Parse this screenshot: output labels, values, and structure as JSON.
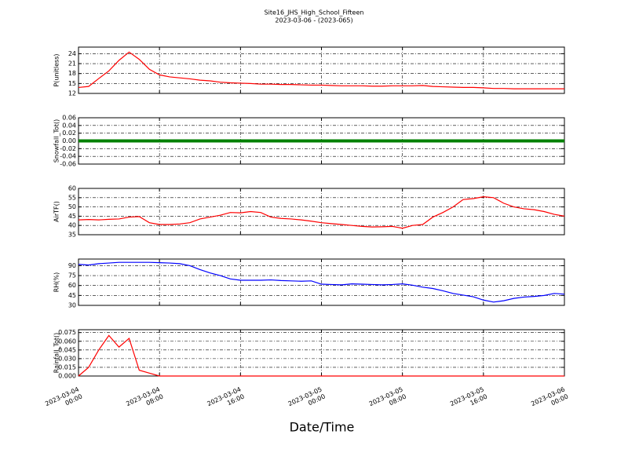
{
  "chart_data": [
    {
      "type": "line",
      "title": "Site16_JHS_High_School_Fifteen",
      "subtitle": "2023-03-06 - (2023-065)",
      "ylabel": "P(unitless)",
      "x": [
        "2023-03-04 00:00",
        "2023-03-04 01:00",
        "2023-03-04 02:00",
        "2023-03-04 03:00",
        "2023-03-04 04:00",
        "2023-03-04 05:00",
        "2023-03-04 06:00",
        "2023-03-04 07:00",
        "2023-03-04 08:00",
        "2023-03-04 09:00",
        "2023-03-04 10:00",
        "2023-03-04 11:00",
        "2023-03-04 12:00",
        "2023-03-04 13:00",
        "2023-03-04 14:00",
        "2023-03-04 15:00",
        "2023-03-04 16:00",
        "2023-03-04 17:00",
        "2023-03-04 18:00",
        "2023-03-04 19:00",
        "2023-03-04 20:00",
        "2023-03-04 21:00",
        "2023-03-04 22:00",
        "2023-03-04 23:00",
        "2023-03-05 00:00",
        "2023-03-05 01:00",
        "2023-03-05 02:00",
        "2023-03-05 03:00",
        "2023-03-05 04:00",
        "2023-03-05 05:00",
        "2023-03-05 06:00",
        "2023-03-05 07:00",
        "2023-03-05 08:00",
        "2023-03-05 09:00",
        "2023-03-05 10:00",
        "2023-03-05 11:00",
        "2023-03-05 12:00",
        "2023-03-05 13:00",
        "2023-03-05 14:00",
        "2023-03-05 15:00",
        "2023-03-05 16:00",
        "2023-03-05 17:00",
        "2023-03-05 18:00",
        "2023-03-05 19:00",
        "2023-03-05 20:00",
        "2023-03-05 21:00",
        "2023-03-05 22:00",
        "2023-03-05 23:00",
        "2023-03-06 00:00"
      ],
      "values": [
        13.8,
        14.1,
        16.5,
        18.8,
        22.0,
        24.5,
        22.3,
        19.3,
        17.6,
        17.0,
        16.7,
        16.4,
        16.0,
        15.8,
        15.4,
        15.2,
        15.1,
        15.0,
        14.8,
        14.8,
        14.7,
        14.7,
        14.6,
        14.5,
        14.5,
        14.4,
        14.3,
        14.3,
        14.3,
        14.2,
        14.2,
        14.3,
        14.3,
        14.3,
        14.4,
        14.1,
        14.0,
        13.9,
        13.8,
        13.8,
        13.7,
        13.5,
        13.5,
        13.4,
        13.4,
        13.4,
        13.4,
        13.4,
        13.4
      ],
      "color": "#ff0000",
      "xlim": [
        "2023-03-04 00:00",
        "2023-03-06 00:00"
      ],
      "xticks": [
        "2023-03-04 00:00",
        "2023-03-04 08:00",
        "2023-03-04 16:00",
        "2023-03-05 00:00",
        "2023-03-05 08:00",
        "2023-03-05 16:00",
        "2023-03-06 00:00"
      ],
      "ylim": [
        12,
        26
      ],
      "yticks": [
        12,
        15,
        18,
        21,
        24
      ],
      "grid": true
    },
    {
      "type": "line",
      "ylabel": "Snowfall_Tot()",
      "x": [
        "2023-03-04 00:00",
        "2023-03-04 01:00",
        "2023-03-04 02:00",
        "2023-03-04 03:00",
        "2023-03-04 04:00",
        "2023-03-04 05:00",
        "2023-03-04 06:00",
        "2023-03-04 07:00",
        "2023-03-04 08:00",
        "2023-03-04 09:00",
        "2023-03-04 10:00",
        "2023-03-04 11:00",
        "2023-03-04 12:00",
        "2023-03-04 13:00",
        "2023-03-04 14:00",
        "2023-03-04 15:00",
        "2023-03-04 16:00",
        "2023-03-04 17:00",
        "2023-03-04 18:00",
        "2023-03-04 19:00",
        "2023-03-04 20:00",
        "2023-03-04 21:00",
        "2023-03-04 22:00",
        "2023-03-04 23:00",
        "2023-03-05 00:00",
        "2023-03-05 01:00",
        "2023-03-05 02:00",
        "2023-03-05 03:00",
        "2023-03-05 04:00",
        "2023-03-05 05:00",
        "2023-03-05 06:00",
        "2023-03-05 07:00",
        "2023-03-05 08:00",
        "2023-03-05 09:00",
        "2023-03-05 10:00",
        "2023-03-05 11:00",
        "2023-03-05 12:00",
        "2023-03-05 13:00",
        "2023-03-05 14:00",
        "2023-03-05 15:00",
        "2023-03-05 16:00",
        "2023-03-05 17:00",
        "2023-03-05 18:00",
        "2023-03-05 19:00",
        "2023-03-05 20:00",
        "2023-03-05 21:00",
        "2023-03-05 22:00",
        "2023-03-05 23:00",
        "2023-03-06 00:00"
      ],
      "values": [
        0,
        0,
        0,
        0,
        0,
        0,
        0,
        0,
        0,
        0,
        0,
        0,
        0,
        0,
        0,
        0,
        0,
        0,
        0,
        0,
        0,
        0,
        0,
        0,
        0,
        0,
        0,
        0,
        0,
        0,
        0,
        0,
        0,
        0,
        0,
        0,
        0,
        0,
        0,
        0,
        0,
        0,
        0,
        0,
        0,
        0,
        0,
        0,
        0
      ],
      "color": "#008000",
      "xlim": [
        "2023-03-04 00:00",
        "2023-03-06 00:00"
      ],
      "xticks": [
        "2023-03-04 00:00",
        "2023-03-04 08:00",
        "2023-03-04 16:00",
        "2023-03-05 00:00",
        "2023-03-05 08:00",
        "2023-03-05 16:00",
        "2023-03-06 00:00"
      ],
      "ylim": [
        -0.06,
        0.06
      ],
      "yticks": [
        -0.06,
        -0.04,
        -0.02,
        {
          "value": 0,
          "label": "0.00"
        },
        0.02,
        0.04,
        0.06
      ],
      "grid": true
    },
    {
      "type": "line",
      "ylabel": "AirTF()",
      "x": [
        "2023-03-04 00:00",
        "2023-03-04 01:00",
        "2023-03-04 02:00",
        "2023-03-04 03:00",
        "2023-03-04 04:00",
        "2023-03-04 05:00",
        "2023-03-04 06:00",
        "2023-03-04 07:00",
        "2023-03-04 08:00",
        "2023-03-04 09:00",
        "2023-03-04 10:00",
        "2023-03-04 11:00",
        "2023-03-04 12:00",
        "2023-03-04 13:00",
        "2023-03-04 14:00",
        "2023-03-04 15:00",
        "2023-03-04 16:00",
        "2023-03-04 17:00",
        "2023-03-04 18:00",
        "2023-03-04 19:00",
        "2023-03-04 20:00",
        "2023-03-04 21:00",
        "2023-03-04 22:00",
        "2023-03-04 23:00",
        "2023-03-05 00:00",
        "2023-03-05 01:00",
        "2023-03-05 02:00",
        "2023-03-05 03:00",
        "2023-03-05 04:00",
        "2023-03-05 05:00",
        "2023-03-05 06:00",
        "2023-03-05 07:00",
        "2023-03-05 08:00",
        "2023-03-05 09:00",
        "2023-03-05 10:00",
        "2023-03-05 11:00",
        "2023-03-05 12:00",
        "2023-03-05 13:00",
        "2023-03-05 14:00",
        "2023-03-05 15:00",
        "2023-03-05 16:00",
        "2023-03-05 17:00",
        "2023-03-05 18:00",
        "2023-03-05 19:00",
        "2023-03-05 20:00",
        "2023-03-05 21:00",
        "2023-03-05 22:00",
        "2023-03-05 23:00",
        "2023-03-06 00:00"
      ],
      "values": [
        43.0,
        43.2,
        43.0,
        43.3,
        43.5,
        44.5,
        44.8,
        41.5,
        40.5,
        40.5,
        40.8,
        41.5,
        43.5,
        44.5,
        45.5,
        47.0,
        46.8,
        47.5,
        47.0,
        44.5,
        43.8,
        43.5,
        43.0,
        42.3,
        41.5,
        41.0,
        40.5,
        40.0,
        39.5,
        39.2,
        39.3,
        39.5,
        38.5,
        40.0,
        40.5,
        44.5,
        47.0,
        50.0,
        54.0,
        54.5,
        55.5,
        55.0,
        52.0,
        50.0,
        49.0,
        48.5,
        47.5,
        46.0,
        45.0
      ],
      "color": "#ff0000",
      "xlim": [
        "2023-03-04 00:00",
        "2023-03-06 00:00"
      ],
      "xticks": [
        "2023-03-04 00:00",
        "2023-03-04 08:00",
        "2023-03-04 16:00",
        "2023-03-05 00:00",
        "2023-03-05 08:00",
        "2023-03-05 16:00",
        "2023-03-06 00:00"
      ],
      "ylim": [
        35,
        60
      ],
      "yticks": [
        35,
        40,
        45,
        50,
        55,
        60
      ],
      "grid": true
    },
    {
      "type": "line",
      "ylabel": "RH(%)",
      "x": [
        "2023-03-04 00:00",
        "2023-03-04 01:00",
        "2023-03-04 02:00",
        "2023-03-04 03:00",
        "2023-03-04 04:00",
        "2023-03-04 05:00",
        "2023-03-04 06:00",
        "2023-03-04 07:00",
        "2023-03-04 08:00",
        "2023-03-04 09:00",
        "2023-03-04 10:00",
        "2023-03-04 11:00",
        "2023-03-04 12:00",
        "2023-03-04 13:00",
        "2023-03-04 14:00",
        "2023-03-04 15:00",
        "2023-03-04 16:00",
        "2023-03-04 17:00",
        "2023-03-04 18:00",
        "2023-03-04 19:00",
        "2023-03-04 20:00",
        "2023-03-04 21:00",
        "2023-03-04 22:00",
        "2023-03-04 23:00",
        "2023-03-05 00:00",
        "2023-03-05 01:00",
        "2023-03-05 02:00",
        "2023-03-05 03:00",
        "2023-03-05 04:00",
        "2023-03-05 05:00",
        "2023-03-05 06:00",
        "2023-03-05 07:00",
        "2023-03-05 08:00",
        "2023-03-05 09:00",
        "2023-03-05 10:00",
        "2023-03-05 11:00",
        "2023-03-05 12:00",
        "2023-03-05 13:00",
        "2023-03-05 14:00",
        "2023-03-05 15:00",
        "2023-03-05 16:00",
        "2023-03-05 17:00",
        "2023-03-05 18:00",
        "2023-03-05 19:00",
        "2023-03-05 20:00",
        "2023-03-05 21:00",
        "2023-03-05 22:00",
        "2023-03-05 23:00",
        "2023-03-06 00:00"
      ],
      "values": [
        92,
        91,
        93,
        94,
        95,
        95,
        95,
        95,
        94.5,
        94,
        93,
        90,
        84,
        79,
        75,
        70,
        68,
        68,
        68,
        68.5,
        67.5,
        67,
        66.5,
        67,
        62,
        61.5,
        61,
        62.5,
        62,
        61.5,
        61,
        61.5,
        62.5,
        60.5,
        57.5,
        55.5,
        52,
        48,
        45.5,
        43,
        38,
        35,
        37,
        40.5,
        42.5,
        43.5,
        45,
        48,
        47
      ],
      "color": "#0000ff",
      "xlim": [
        "2023-03-04 00:00",
        "2023-03-06 00:00"
      ],
      "xticks": [
        "2023-03-04 00:00",
        "2023-03-04 08:00",
        "2023-03-04 16:00",
        "2023-03-05 00:00",
        "2023-03-05 08:00",
        "2023-03-05 16:00",
        "2023-03-06 00:00"
      ],
      "ylim": [
        30,
        100
      ],
      "yticks": [
        30,
        45,
        60,
        75,
        90
      ],
      "grid": true
    },
    {
      "type": "line",
      "ylabel": "Rainfall_Tot()",
      "xlabel": "Date/Time",
      "x": [
        "2023-03-04 00:00",
        "2023-03-04 01:00",
        "2023-03-04 02:00",
        "2023-03-04 03:00",
        "2023-03-04 04:00",
        "2023-03-04 05:00",
        "2023-03-04 06:00",
        "2023-03-04 07:00",
        "2023-03-04 08:00",
        "2023-03-04 09:00",
        "2023-03-04 10:00",
        "2023-03-04 11:00",
        "2023-03-04 12:00",
        "2023-03-04 13:00",
        "2023-03-04 14:00",
        "2023-03-04 15:00",
        "2023-03-04 16:00",
        "2023-03-04 17:00",
        "2023-03-04 18:00",
        "2023-03-04 19:00",
        "2023-03-04 20:00",
        "2023-03-04 21:00",
        "2023-03-04 22:00",
        "2023-03-04 23:00",
        "2023-03-05 00:00",
        "2023-03-05 01:00",
        "2023-03-05 02:00",
        "2023-03-05 03:00",
        "2023-03-05 04:00",
        "2023-03-05 05:00",
        "2023-03-05 06:00",
        "2023-03-05 07:00",
        "2023-03-05 08:00",
        "2023-03-05 09:00",
        "2023-03-05 10:00",
        "2023-03-05 11:00",
        "2023-03-05 12:00",
        "2023-03-05 13:00",
        "2023-03-05 14:00",
        "2023-03-05 15:00",
        "2023-03-05 16:00",
        "2023-03-05 17:00",
        "2023-03-05 18:00",
        "2023-03-05 19:00",
        "2023-03-05 20:00",
        "2023-03-05 21:00",
        "2023-03-05 22:00",
        "2023-03-05 23:00",
        "2023-03-06 00:00"
      ],
      "values": [
        0,
        0.015,
        0.045,
        0.07,
        0.05,
        0.065,
        0.01,
        0.005,
        0,
        0,
        0,
        0,
        0,
        0,
        0,
        0,
        0,
        0,
        0,
        0,
        0,
        0,
        0,
        0,
        0,
        0,
        0,
        0,
        0,
        0,
        0,
        0,
        0,
        0,
        0,
        0,
        0,
        0,
        0,
        0,
        0,
        0,
        0,
        0,
        0,
        0,
        0,
        0,
        0
      ],
      "color": "#ff0000",
      "xlim": [
        "2023-03-04 00:00",
        "2023-03-06 00:00"
      ],
      "xticks": [
        "2023-03-04 00:00",
        "2023-03-04 08:00",
        "2023-03-04 16:00",
        "2023-03-05 00:00",
        "2023-03-05 08:00",
        "2023-03-05 16:00",
        "2023-03-06 00:00"
      ],
      "ylim": [
        0,
        0.08
      ],
      "yticks": [
        {
          "value": 0,
          "label": "0.000"
        },
        0.015,
        {
          "value": 0.03,
          "label": "0.030"
        },
        0.045,
        {
          "value": 0.06,
          "label": "0.060"
        },
        0.075
      ],
      "grid": true
    }
  ]
}
